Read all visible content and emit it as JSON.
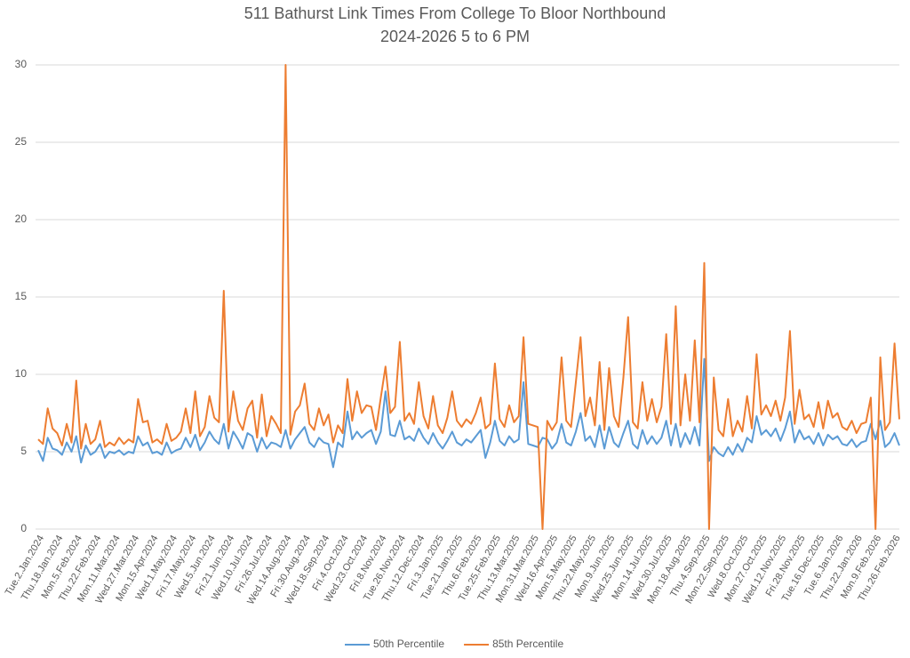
{
  "chart_data": {
    "type": "line",
    "title": "511 Bathurst Link Times From College To Bloor Northbound",
    "subtitle": "2024-2026 5 to 6 PM",
    "ylim": [
      0,
      30
    ],
    "yticks": [
      0,
      5,
      10,
      15,
      20,
      25,
      30
    ],
    "grid": true,
    "legend": "bottom",
    "categories": [
      "Tue.2.Jan.2024",
      null,
      null,
      null,
      "Thu.18.Jan.2024",
      null,
      null,
      null,
      "Mon.5.Feb.2024",
      null,
      null,
      null,
      "Thu.22.Feb.2024",
      null,
      null,
      null,
      "Mon.11.Mar.2024",
      null,
      null,
      null,
      "Wed.27.Mar.2024",
      null,
      null,
      null,
      "Mon.15.Apr.2024",
      null,
      null,
      null,
      "Wed.1.May.2024",
      null,
      null,
      null,
      "Fri.17.May.2024",
      null,
      null,
      null,
      "Wed.5.Jun.2024",
      null,
      null,
      null,
      "Fri.21.Jun.2024",
      null,
      null,
      null,
      "Wed.10.Jul.2024",
      null,
      null,
      null,
      "Fri.26.Jul.2024",
      null,
      null,
      null,
      "Wed.14.Aug.2024",
      null,
      null,
      null,
      "Fri.30.Aug.2024",
      null,
      null,
      null,
      "Wed.18.Sep.2024",
      null,
      null,
      null,
      "Fri.4.Oct.2024",
      null,
      null,
      null,
      "Wed.23.Oct.2024",
      null,
      null,
      null,
      "Fri.8.Nov.2024",
      null,
      null,
      null,
      "Tue.26.Nov.2024",
      null,
      null,
      null,
      "Thu.12.Dec.2024",
      null,
      null,
      null,
      "Fri.3.Jan.2025",
      null,
      null,
      null,
      "Tue.21.Jan.2025",
      null,
      null,
      null,
      "Thu.6.Feb.2025",
      null,
      null,
      null,
      "Tue.25.Feb.2025",
      null,
      null,
      null,
      "Thu.13.Mar.2025",
      null,
      null,
      null,
      "Mon.31.Mar.2025",
      null,
      null,
      null,
      "Wed.16.Apr.2025",
      null,
      null,
      null,
      "Mon.5.May.2025",
      null,
      null,
      null,
      "Thu.22.May.2025",
      null,
      null,
      null,
      "Mon.9.Jun.2025",
      null,
      null,
      null,
      "Wed.25.Jun.2025",
      null,
      null,
      null,
      "Mon.14.Jul.2025",
      null,
      null,
      null,
      "Wed.30.Jul.2025",
      null,
      null,
      null,
      "Mon.18.Aug.2025",
      null,
      null,
      null,
      "Thu.4.Sep.2025",
      null,
      null,
      null,
      "Mon.22.Sep.2025",
      null,
      null,
      null,
      "Wed.8.Oct.2025",
      null,
      null,
      null,
      "Mon.27.Oct.2025",
      null,
      null,
      null,
      "Wed.12.Nov.2025",
      null,
      null,
      null,
      "Fri.28.Nov.2025",
      null,
      null,
      null,
      "Tue.16.Dec.2025",
      null,
      null,
      null,
      "Tue.6.Jan.2026",
      null,
      null,
      null,
      "Thu.22.Jan.2026",
      null,
      null,
      null,
      "Mon.9.Feb.2026",
      null,
      null,
      null,
      "Thu.26.Feb.2026",
      null
    ],
    "series": [
      {
        "name": "50th Percentile",
        "color": "#5b9bd5",
        "values": [
          5.1,
          4.4,
          5.9,
          5.2,
          5.1,
          4.8,
          5.6,
          5.0,
          6.0,
          4.3,
          5.4,
          4.8,
          5.0,
          5.5,
          4.6,
          5.0,
          4.9,
          5.1,
          4.8,
          5.0,
          4.9,
          6.0,
          5.4,
          5.6,
          4.9,
          5.0,
          4.8,
          5.6,
          4.9,
          5.1,
          5.2,
          5.9,
          5.3,
          6.1,
          5.1,
          5.6,
          6.3,
          5.8,
          5.5,
          6.8,
          5.2,
          6.3,
          5.8,
          5.2,
          6.2,
          6.0,
          5.0,
          5.9,
          5.2,
          5.6,
          5.5,
          5.3,
          6.4,
          5.2,
          5.8,
          6.2,
          6.6,
          5.6,
          5.3,
          5.9,
          5.6,
          5.5,
          4.0,
          5.6,
          5.3,
          7.6,
          5.8,
          6.3,
          5.9,
          6.2,
          6.4,
          5.5,
          6.3,
          8.9,
          6.1,
          6.0,
          7.0,
          5.8,
          6.0,
          5.7,
          6.5,
          5.9,
          5.5,
          6.2,
          5.6,
          5.2,
          5.7,
          6.3,
          5.6,
          5.4,
          5.8,
          5.6,
          6.0,
          6.4,
          4.6,
          5.6,
          7.0,
          5.7,
          5.4,
          6.0,
          5.6,
          5.8,
          9.5,
          5.5,
          5.4,
          5.3,
          5.9,
          5.8,
          5.2,
          5.6,
          6.8,
          5.6,
          5.4,
          6.3,
          7.5,
          5.7,
          6.0,
          5.3,
          6.7,
          5.2,
          6.6,
          5.6,
          5.3,
          6.2,
          7.0,
          5.5,
          5.2,
          6.4,
          5.5,
          6.0,
          5.5,
          5.9,
          7.0,
          5.4,
          6.8,
          5.3,
          6.2,
          5.5,
          6.6,
          5.4,
          11.0,
          4.4,
          5.3,
          4.9,
          4.7,
          5.3,
          4.8,
          5.5,
          5.0,
          5.9,
          5.6,
          7.3,
          6.1,
          6.4,
          6.0,
          6.5,
          5.7,
          6.5,
          7.6,
          5.6,
          6.4,
          5.8,
          6.0,
          5.5,
          6.2,
          5.4,
          6.1,
          5.8,
          6.0,
          5.5,
          5.4,
          5.8,
          5.3,
          5.6,
          5.7,
          6.8,
          5.8,
          7.0,
          5.3,
          5.6,
          6.2,
          5.4
        ]
      },
      {
        "name": "85th Percentile",
        "color": "#ed7d31",
        "values": [
          5.8,
          5.5,
          7.8,
          6.5,
          6.2,
          5.4,
          6.8,
          5.6,
          9.6,
          5.2,
          6.8,
          5.5,
          5.8,
          7.0,
          5.3,
          5.6,
          5.4,
          5.9,
          5.5,
          5.8,
          5.6,
          8.4,
          6.9,
          7.0,
          5.6,
          5.8,
          5.5,
          6.8,
          5.7,
          5.9,
          6.3,
          7.8,
          6.2,
          8.9,
          6.0,
          6.6,
          8.6,
          7.2,
          6.9,
          15.4,
          6.3,
          8.9,
          7.0,
          6.4,
          7.8,
          8.3,
          5.9,
          8.7,
          6.0,
          7.3,
          6.8,
          6.2,
          30,
          6.1,
          7.6,
          8.0,
          9.4,
          6.8,
          6.4,
          7.8,
          6.7,
          7.4,
          5.6,
          6.7,
          6.2,
          9.7,
          7.0,
          8.9,
          7.5,
          8.0,
          7.9,
          6.4,
          8.5,
          10.5,
          7.5,
          7.9,
          12.1,
          7.0,
          7.5,
          6.8,
          9.5,
          7.3,
          6.5,
          8.6,
          6.7,
          6.2,
          7.2,
          8.9,
          7.0,
          6.6,
          7.1,
          6.8,
          7.5,
          8.5,
          6.5,
          6.8,
          10.7,
          7.1,
          6.6,
          8.0,
          6.9,
          7.3,
          12.4,
          6.8,
          6.7,
          6.6,
          0,
          7.0,
          6.4,
          6.9,
          11.1,
          7.0,
          6.6,
          9.5,
          12.4,
          7.3,
          8.5,
          6.7,
          10.8,
          6.4,
          10.4,
          7.3,
          6.6,
          9.8,
          13.7,
          6.9,
          6.5,
          9.5,
          7.0,
          8.4,
          6.9,
          7.9,
          12.6,
          6.8,
          14.4,
          6.7,
          10.0,
          7.0,
          12.2,
          6.9,
          17.2,
          0,
          9.8,
          6.4,
          6.0,
          8.4,
          6.0,
          7.0,
          6.3,
          8.6,
          6.5,
          11.3,
          7.4,
          8.0,
          7.3,
          8.3,
          7.0,
          8.5,
          12.8,
          6.8,
          9.0,
          7.1,
          7.4,
          6.6,
          8.2,
          6.5,
          8.3,
          7.2,
          7.5,
          6.6,
          6.4,
          7.0,
          6.2,
          6.8,
          6.9,
          8.5,
          0,
          11.1,
          6.4,
          6.9,
          12.0,
          7.1
        ]
      }
    ]
  }
}
